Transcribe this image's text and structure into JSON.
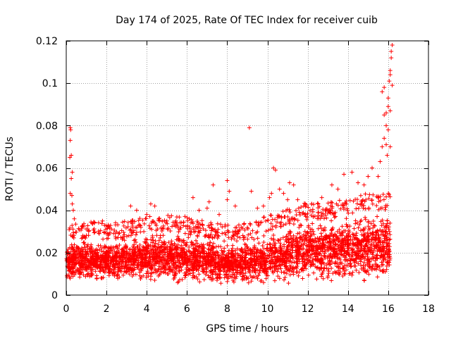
{
  "chart_data": {
    "type": "scatter",
    "title": "Day 174 of 2025, Rate Of TEC Index for receiver cuib",
    "xlabel": "GPS time / hours",
    "ylabel": "ROTI / TECUs",
    "xlim": [
      0,
      18
    ],
    "ylim": [
      0,
      0.12
    ],
    "grid": true,
    "marker": "plus",
    "color": "#ff0000",
    "x_ticks": [
      0,
      2,
      4,
      6,
      8,
      10,
      12,
      14,
      16,
      18
    ],
    "x_tick_labels": [
      "0",
      "2",
      "4",
      "6",
      "8",
      "10",
      "12",
      "14",
      "16",
      "18"
    ],
    "y_ticks": [
      0,
      0.02,
      0.04,
      0.06,
      0.08,
      0.1,
      0.12
    ],
    "y_tick_labels": [
      "0",
      "0.02",
      "0.04",
      "0.06",
      "0.08",
      "0.1",
      "0.12"
    ],
    "series": [
      {
        "name": "ROTI",
        "band": {
          "t": [
            0,
            1,
            2,
            3,
            4,
            5,
            6,
            7,
            8,
            9,
            10,
            11,
            12,
            13,
            14,
            15,
            16.1
          ],
          "low": [
            0.005,
            0.005,
            0.005,
            0.005,
            0.005,
            0.005,
            0.005,
            0.005,
            0.003,
            0.003,
            0.004,
            0.004,
            0.004,
            0.004,
            0.004,
            0.004,
            0.004
          ],
          "high": [
            0.026,
            0.027,
            0.026,
            0.027,
            0.029,
            0.03,
            0.029,
            0.027,
            0.025,
            0.026,
            0.03,
            0.033,
            0.036,
            0.036,
            0.038,
            0.04,
            0.04
          ]
        },
        "points": [
          [
            0.2,
            0.079
          ],
          [
            0.22,
            0.078
          ],
          [
            0.2,
            0.073
          ],
          [
            0.18,
            0.065
          ],
          [
            0.25,
            0.066
          ],
          [
            0.3,
            0.058
          ],
          [
            0.25,
            0.055
          ],
          [
            0.2,
            0.048
          ],
          [
            0.28,
            0.047
          ],
          [
            0.3,
            0.043
          ],
          [
            0.35,
            0.04
          ],
          [
            0.4,
            0.036
          ],
          [
            1.4,
            0.034
          ],
          [
            1.8,
            0.035
          ],
          [
            3.2,
            0.042
          ],
          [
            3.5,
            0.04
          ],
          [
            4.2,
            0.043
          ],
          [
            4.4,
            0.042
          ],
          [
            4.0,
            0.038
          ],
          [
            4.6,
            0.036
          ],
          [
            5.0,
            0.035
          ],
          [
            5.5,
            0.034
          ],
          [
            6.3,
            0.046
          ],
          [
            6.6,
            0.04
          ],
          [
            7.0,
            0.041
          ],
          [
            7.3,
            0.052
          ],
          [
            7.1,
            0.044
          ],
          [
            7.6,
            0.038
          ],
          [
            8.0,
            0.054
          ],
          [
            8.1,
            0.049
          ],
          [
            8.0,
            0.045
          ],
          [
            8.4,
            0.042
          ],
          [
            9.1,
            0.079
          ],
          [
            9.2,
            0.049
          ],
          [
            9.5,
            0.041
          ],
          [
            9.8,
            0.042
          ],
          [
            10.3,
            0.06
          ],
          [
            10.4,
            0.059
          ],
          [
            10.6,
            0.05
          ],
          [
            10.8,
            0.048
          ],
          [
            10.2,
            0.048
          ],
          [
            10.1,
            0.046
          ],
          [
            11.0,
            0.045
          ],
          [
            11.1,
            0.053
          ],
          [
            11.3,
            0.052
          ],
          [
            11.5,
            0.045
          ],
          [
            11.8,
            0.042
          ],
          [
            12.2,
            0.043
          ],
          [
            12.7,
            0.046
          ],
          [
            13.2,
            0.052
          ],
          [
            13.5,
            0.05
          ],
          [
            13.8,
            0.057
          ],
          [
            14.2,
            0.058
          ],
          [
            14.5,
            0.053
          ],
          [
            14.8,
            0.052
          ],
          [
            15.0,
            0.056
          ],
          [
            15.2,
            0.06
          ],
          [
            15.5,
            0.056
          ],
          [
            15.6,
            0.063
          ],
          [
            15.7,
            0.07
          ],
          [
            15.8,
            0.074
          ],
          [
            15.9,
            0.071
          ],
          [
            15.8,
            0.085
          ],
          [
            15.9,
            0.086
          ],
          [
            15.7,
            0.096
          ],
          [
            15.8,
            0.098
          ],
          [
            16.0,
            0.093
          ],
          [
            16.05,
            0.101
          ],
          [
            16.1,
            0.104
          ],
          [
            16.1,
            0.106
          ],
          [
            16.15,
            0.112
          ],
          [
            16.15,
            0.115
          ],
          [
            16.2,
            0.118
          ],
          [
            16.2,
            0.099
          ],
          [
            16.0,
            0.089
          ],
          [
            16.1,
            0.087
          ],
          [
            15.9,
            0.08
          ],
          [
            16.0,
            0.078
          ],
          [
            16.1,
            0.07
          ],
          [
            15.95,
            0.066
          ]
        ]
      }
    ]
  }
}
